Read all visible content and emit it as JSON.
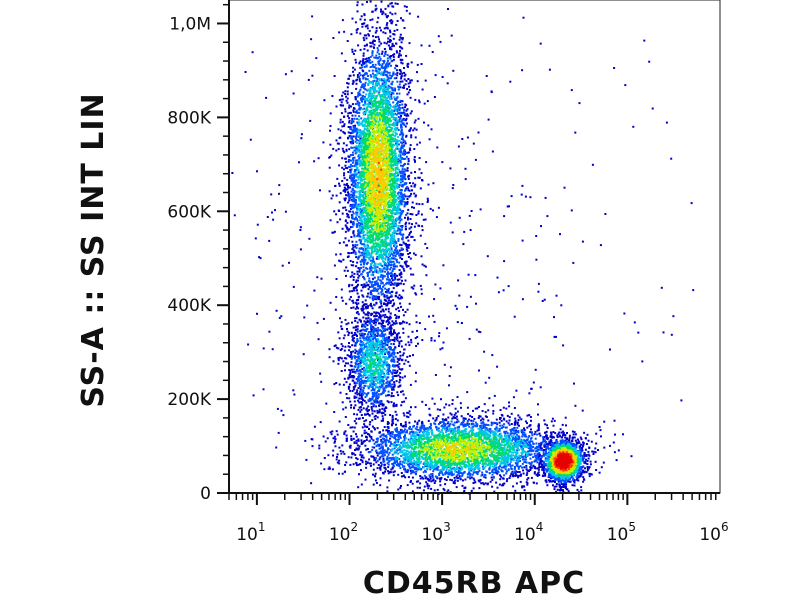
{
  "chart_data": {
    "type": "scatter",
    "title": "",
    "xlabel": "CD45RB APC",
    "ylabel": "SS-A :: SS INT LIN",
    "x_scale": "log",
    "xlim": [
      5,
      1000000
    ],
    "ylim": [
      0,
      1050000
    ],
    "x_ticks": [
      {
        "value": 10,
        "base": "10",
        "exp": "1"
      },
      {
        "value": 100,
        "base": "10",
        "exp": "2"
      },
      {
        "value": 1000,
        "base": "10",
        "exp": "3"
      },
      {
        "value": 10000,
        "base": "10",
        "exp": "4"
      },
      {
        "value": 100000,
        "base": "10",
        "exp": "5"
      },
      {
        "value": 1000000,
        "base": "10",
        "exp": "6"
      }
    ],
    "y_ticks": [
      {
        "value": 0,
        "label": "0"
      },
      {
        "value": 200000,
        "label": "200K"
      },
      {
        "value": 400000,
        "label": "400K"
      },
      {
        "value": 600000,
        "label": "600K"
      },
      {
        "value": 800000,
        "label": "800K"
      },
      {
        "value": 1000000,
        "label": "1,0M"
      }
    ],
    "grid": false,
    "legend": "none",
    "color_scale": [
      "#0000c8",
      "#0050ff",
      "#00c8e6",
      "#00dc64",
      "#c8f000",
      "#ffc800",
      "#ff3c00",
      "#e60000"
    ],
    "populations": [
      {
        "name": "",
        "center_x": 200,
        "center_y": 680000,
        "spread_log_x": 0.17,
        "spread_y": 150000,
        "count": 5200,
        "peak_density": 0.62
      },
      {
        "name": "",
        "center_x": 180,
        "center_y": 280000,
        "spread_log_x": 0.16,
        "spread_y": 60000,
        "count": 1300,
        "peak_density": 0.35
      },
      {
        "name": "",
        "center_x": 20000,
        "center_y": 70000,
        "spread_log_x": 0.11,
        "spread_y": 22000,
        "count": 1800,
        "peak_density": 1.0
      },
      {
        "name": "",
        "center_x": 1500,
        "center_y": 95000,
        "spread_log_x": 0.55,
        "spread_y": 35000,
        "count": 3600,
        "peak_density": 0.55
      },
      {
        "name": "",
        "center_x": 500,
        "center_y": 500000,
        "spread_log_x": 1.2,
        "spread_y": 300000,
        "count": 450,
        "peak_density": 0.05
      }
    ]
  }
}
